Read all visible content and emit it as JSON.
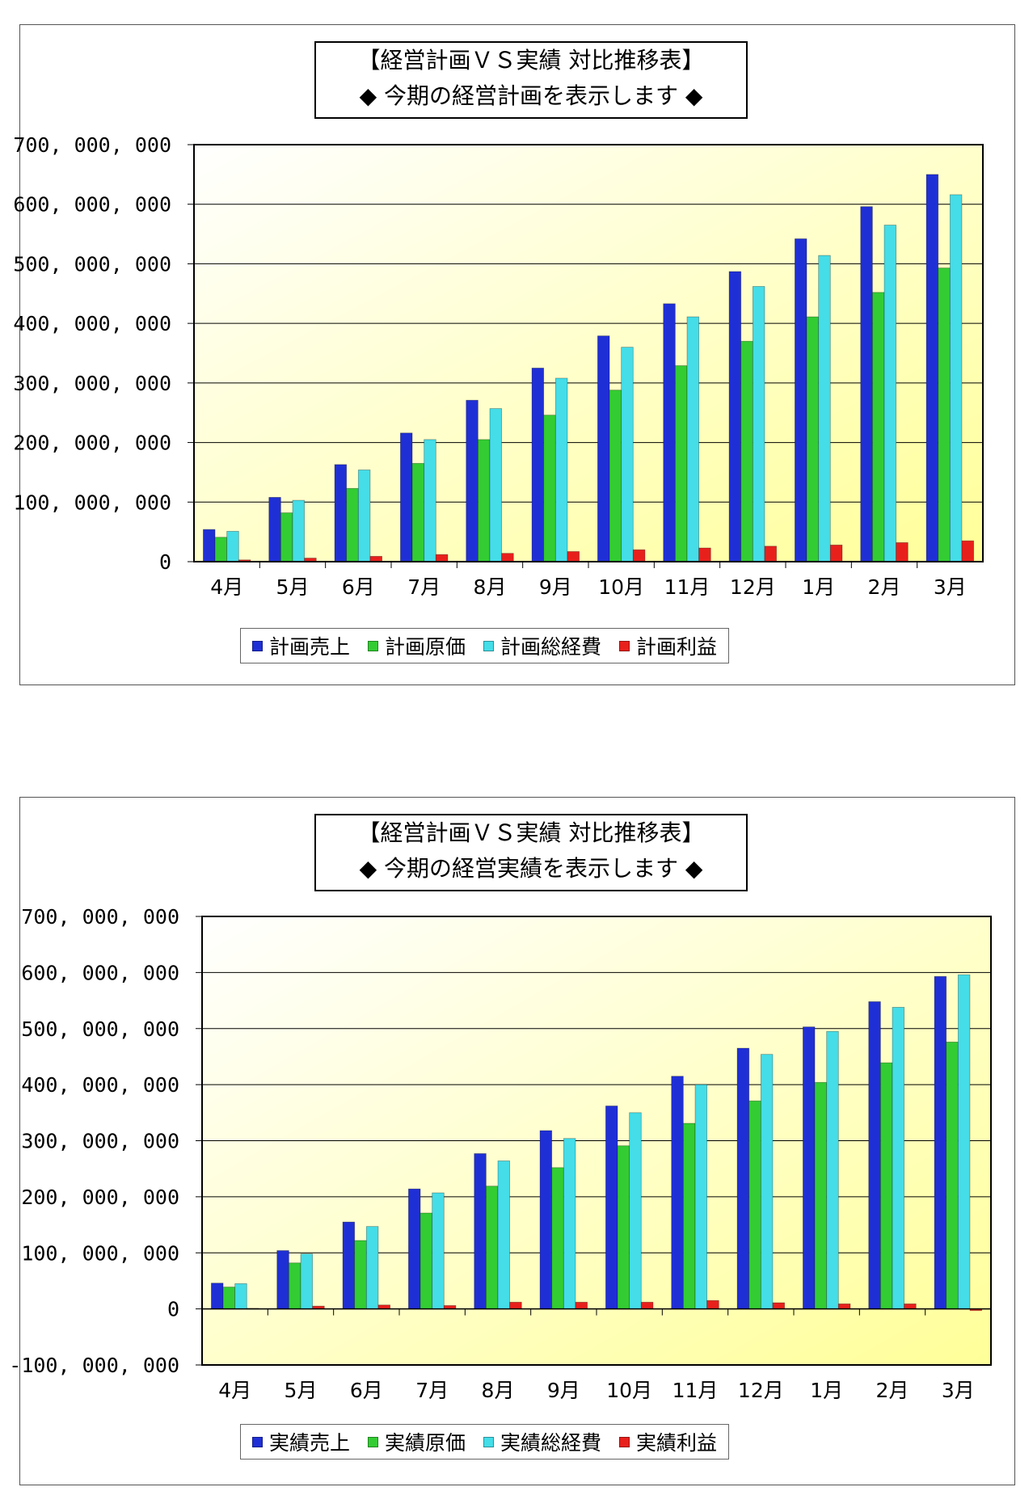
{
  "chart_data": [
    {
      "type": "bar",
      "title_lines": [
        "【経営計画ＶＳ実績 対比推移表】",
        "◆ 今期の経営計画を表示します ◆"
      ],
      "categories": [
        "4月",
        "5月",
        "6月",
        "7月",
        "8月",
        "9月",
        "10月",
        "11月",
        "12月",
        "1月",
        "2月",
        "3月"
      ],
      "ylim": [
        0,
        700000000
      ],
      "yticks": [
        0,
        100000000,
        200000000,
        300000000,
        400000000,
        500000000,
        600000000,
        700000000
      ],
      "ytick_labels": [
        "0",
        "100, 000, 000",
        "200, 000, 000",
        "300, 000, 000",
        "400, 000, 000",
        "500, 000, 000",
        "600, 000, 000",
        "700, 000, 000"
      ],
      "grid": true,
      "legend": "bottom",
      "series": [
        {
          "name": "計画売上",
          "color": "#1f2fd6",
          "values": [
            54000000,
            108000000,
            163000000,
            216000000,
            271000000,
            325000000,
            379000000,
            433000000,
            487000000,
            542000000,
            596000000,
            650000000
          ]
        },
        {
          "name": "計画原価",
          "color": "#33cc33",
          "values": [
            41000000,
            82000000,
            123000000,
            165000000,
            205000000,
            246000000,
            288000000,
            329000000,
            370000000,
            411000000,
            452000000,
            493000000
          ]
        },
        {
          "name": "計画総経費",
          "color": "#44dde8",
          "values": [
            51000000,
            103000000,
            154000000,
            205000000,
            257000000,
            308000000,
            360000000,
            411000000,
            462000000,
            514000000,
            565000000,
            616000000
          ]
        },
        {
          "name": "計画利益",
          "color": "#e8201c",
          "values": [
            3000000,
            6000000,
            9000000,
            12000000,
            14000000,
            17000000,
            20000000,
            23000000,
            26000000,
            28000000,
            32000000,
            35000000
          ]
        }
      ]
    },
    {
      "type": "bar",
      "title_lines": [
        "【経営計画ＶＳ実績 対比推移表】",
        "◆ 今期の経営実績を表示します ◆"
      ],
      "categories": [
        "4月",
        "5月",
        "6月",
        "7月",
        "8月",
        "9月",
        "10月",
        "11月",
        "12月",
        "1月",
        "2月",
        "3月"
      ],
      "ylim": [
        -100000000,
        700000000
      ],
      "yticks": [
        -100000000,
        0,
        100000000,
        200000000,
        300000000,
        400000000,
        500000000,
        600000000,
        700000000
      ],
      "ytick_labels": [
        "-100, 000, 000",
        "0",
        "100, 000, 000",
        "200, 000, 000",
        "300, 000, 000",
        "400, 000, 000",
        "500, 000, 000",
        "600, 000, 000",
        "700, 000, 000"
      ],
      "grid": true,
      "legend": "bottom",
      "series": [
        {
          "name": "実績売上",
          "color": "#1f2fd6",
          "values": [
            46000000,
            104000000,
            155000000,
            214000000,
            277000000,
            318000000,
            362000000,
            415000000,
            465000000,
            503000000,
            548000000,
            593000000
          ]
        },
        {
          "name": "実績原価",
          "color": "#33cc33",
          "values": [
            39000000,
            82000000,
            122000000,
            171000000,
            219000000,
            252000000,
            291000000,
            331000000,
            371000000,
            404000000,
            439000000,
            476000000
          ]
        },
        {
          "name": "実績総経費",
          "color": "#44dde8",
          "values": [
            45000000,
            98000000,
            147000000,
            207000000,
            264000000,
            304000000,
            350000000,
            400000000,
            454000000,
            495000000,
            538000000,
            596000000
          ]
        },
        {
          "name": "実績利益",
          "color": "#e8201c",
          "values": [
            1000000,
            5000000,
            7000000,
            6000000,
            12000000,
            12000000,
            12000000,
            15000000,
            11000000,
            9000000,
            9000000,
            -3000000
          ]
        }
      ]
    }
  ]
}
